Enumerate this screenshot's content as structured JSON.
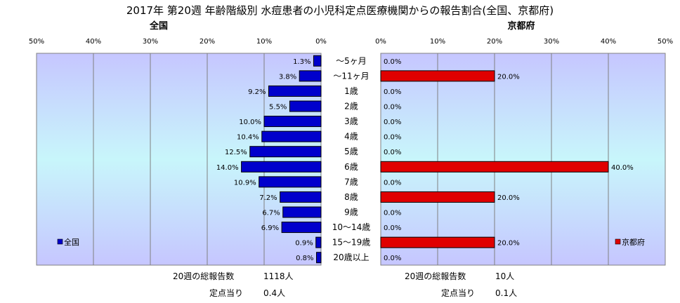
{
  "title": "2017年 第20週 年齢階級別 水痘患者の小児科定点医療機関からの報告割合(全国、京都府)",
  "chart_data": {
    "type": "bar",
    "orientation": "horizontal",
    "categories": [
      "～5ヶ月",
      "～11ヶ月",
      "1歳",
      "2歳",
      "3歳",
      "4歳",
      "5歳",
      "6歳",
      "7歳",
      "8歳",
      "9歳",
      "10～14歳",
      "15～19歳",
      "20歳以上"
    ],
    "panels": [
      {
        "name": "全国",
        "direction": "reversed",
        "xlim": [
          0,
          50
        ],
        "ticks": [
          "50%",
          "40%",
          "30%",
          "20%",
          "10%",
          "0%"
        ],
        "tick_values": [
          50,
          40,
          30,
          20,
          10,
          0
        ],
        "values": [
          1.3,
          3.8,
          9.2,
          5.5,
          10.0,
          10.4,
          12.5,
          14.0,
          10.9,
          7.2,
          6.7,
          6.9,
          0.9,
          0.8
        ],
        "labels": [
          "1.3%",
          "3.8%",
          "9.2%",
          "5.5%",
          "10.0%",
          "10.4%",
          "12.5%",
          "14.0%",
          "10.9%",
          "7.2%",
          "6.7%",
          "6.9%",
          "0.9%",
          "0.8%"
        ],
        "bar_color": "#0000cc",
        "legend": "全国",
        "legend_position": "bottom-left"
      },
      {
        "name": "京都府",
        "direction": "normal",
        "xlim": [
          0,
          50
        ],
        "ticks": [
          "0%",
          "10%",
          "20%",
          "30%",
          "40%",
          "50%"
        ],
        "tick_values": [
          0,
          10,
          20,
          30,
          40,
          50
        ],
        "values": [
          0.0,
          20.0,
          0.0,
          0.0,
          0.0,
          0.0,
          0.0,
          40.0,
          0.0,
          20.0,
          0.0,
          0.0,
          20.0,
          0.0
        ],
        "labels": [
          "0.0%",
          "20.0%",
          "0.0%",
          "0.0%",
          "0.0%",
          "0.0%",
          "0.0%",
          "40.0%",
          "0.0%",
          "20.0%",
          "0.0%",
          "0.0%",
          "20.0%",
          "0.0%"
        ],
        "bar_color": "#e00000",
        "legend": "京都府",
        "legend_position": "bottom-right"
      }
    ],
    "grid": true,
    "plot_gradient": [
      "#c6c6ff",
      "#c8f6fb",
      "#c6c6ff"
    ]
  },
  "footer": {
    "national": {
      "total_label": "20週の総報告数",
      "total_value": "1118人",
      "per_label": "定点当り",
      "per_value": "0.4人"
    },
    "kyoto": {
      "total_label": "20週の総報告数",
      "total_value": "10人",
      "per_label": "定点当り",
      "per_value": "0.1人"
    }
  }
}
